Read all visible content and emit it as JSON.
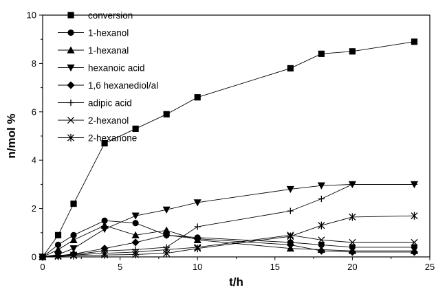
{
  "chart_data": {
    "type": "line",
    "xlabel": "t/h",
    "ylabel": "n/mol %",
    "xlim": [
      0,
      25
    ],
    "ylim": [
      0,
      10
    ],
    "xticks": [
      "0",
      "5",
      "10",
      "15",
      "20",
      "25"
    ],
    "yticks": [
      "0",
      "2",
      "4",
      "6",
      "8",
      "10"
    ],
    "grid": false,
    "legend_position": "top-left",
    "series": [
      {
        "name": "conversion",
        "marker": "square",
        "x": [
          0,
          1,
          2,
          4,
          6,
          8,
          10,
          16,
          18,
          20,
          24
        ],
        "y": [
          0,
          0.9,
          2.2,
          4.7,
          5.3,
          5.9,
          6.6,
          7.8,
          8.4,
          8.5,
          8.9
        ]
      },
      {
        "name": "1-hexanol",
        "marker": "circle",
        "x": [
          0,
          1,
          2,
          4,
          6,
          8,
          10,
          16,
          18,
          20,
          24
        ],
        "y": [
          0,
          0.5,
          0.9,
          1.5,
          1.4,
          0.9,
          0.8,
          0.6,
          0.5,
          0.4,
          0.4
        ]
      },
      {
        "name": "1-hexanal",
        "marker": "triangle-up",
        "x": [
          0,
          1,
          2,
          4,
          6,
          8,
          10,
          16,
          18,
          20,
          24
        ],
        "y": [
          0,
          0.3,
          0.7,
          1.3,
          0.9,
          1.1,
          0.7,
          0.35,
          0.3,
          0.25,
          0.25
        ]
      },
      {
        "name": "hexanoic acid",
        "marker": "triangle-down",
        "x": [
          0,
          1,
          2,
          4,
          6,
          8,
          10,
          16,
          18,
          20,
          24
        ],
        "y": [
          0,
          0.1,
          0.35,
          1.15,
          1.7,
          1.95,
          2.25,
          2.8,
          2.95,
          3.0,
          3.0
        ]
      },
      {
        "name": "1,6 hexanediol/al",
        "marker": "diamond",
        "x": [
          0,
          1,
          2,
          4,
          6,
          8,
          10,
          16,
          18,
          20,
          24
        ],
        "y": [
          0,
          0.05,
          0.12,
          0.35,
          0.6,
          0.9,
          0.75,
          0.5,
          0.25,
          0.2,
          0.2
        ]
      },
      {
        "name": "adipic acid",
        "marker": "plus",
        "x": [
          0,
          1,
          2,
          4,
          6,
          8,
          10,
          16,
          18,
          20,
          24
        ],
        "y": [
          0,
          0.05,
          0.1,
          0.25,
          0.3,
          0.4,
          1.25,
          1.9,
          2.4,
          3.0,
          3.0
        ]
      },
      {
        "name": "2-hexanol",
        "marker": "cross",
        "x": [
          0,
          1,
          2,
          4,
          6,
          8,
          10,
          16,
          18,
          20,
          24
        ],
        "y": [
          0,
          0.05,
          0.08,
          0.15,
          0.2,
          0.3,
          0.4,
          0.9,
          0.7,
          0.6,
          0.6
        ]
      },
      {
        "name": "2-hexanone",
        "marker": "asterisk",
        "x": [
          0,
          1,
          2,
          4,
          6,
          8,
          10,
          16,
          18,
          20,
          24
        ],
        "y": [
          0,
          0.02,
          0.05,
          0.08,
          0.1,
          0.15,
          0.35,
          0.85,
          1.3,
          1.65,
          1.7
        ]
      }
    ]
  }
}
